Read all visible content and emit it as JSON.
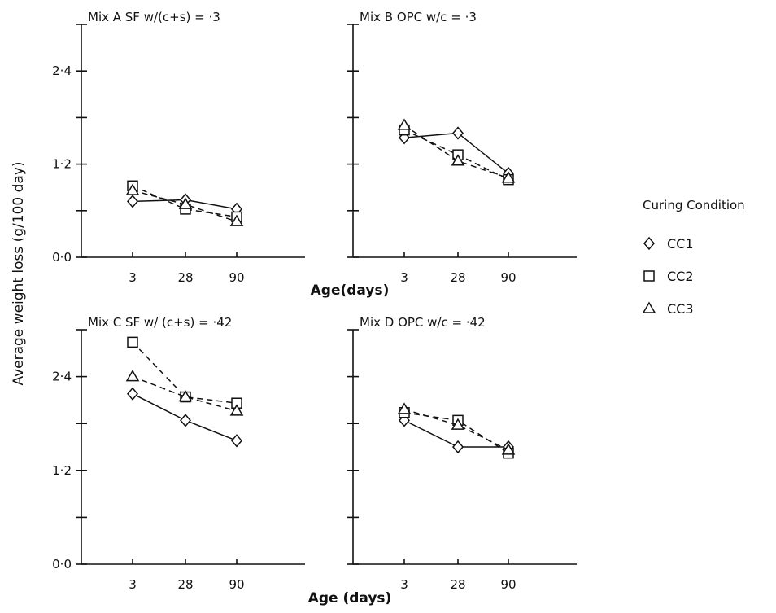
{
  "chart_data": {
    "type": "line",
    "ylabel": "Average weight loss (g/100 day)",
    "legend": {
      "title": "Curing Condition",
      "placement": "right",
      "entries": [
        {
          "name": "CC1",
          "marker": "diamond"
        },
        {
          "name": "CC2",
          "marker": "square"
        },
        {
          "name": "CC3",
          "marker": "triangle"
        }
      ]
    },
    "panels": [
      {
        "title": "Mix A  SF  w/(c+s) = ·3",
        "xlabel": "Age(days)",
        "categories": [
          "3",
          "28",
          "90"
        ],
        "yticks": [
          "0·0",
          "1·2",
          "2·4"
        ],
        "ylim": [
          0,
          3.0
        ],
        "series": [
          {
            "name": "CC1",
            "values": [
              0.72,
              0.74,
              0.62
            ]
          },
          {
            "name": "CC2",
            "values": [
              0.92,
              0.62,
              0.52
            ]
          },
          {
            "name": "CC3",
            "values": [
              0.86,
              0.68,
              0.46
            ]
          }
        ]
      },
      {
        "title": "Mix B  OPC  w/c = ·3",
        "xlabel": "",
        "categories": [
          "3",
          "28",
          "90"
        ],
        "yticks": [
          "",
          "",
          ""
        ],
        "ylim": [
          0,
          3.0
        ],
        "series": [
          {
            "name": "CC1",
            "values": [
              1.54,
              1.6,
              1.08
            ]
          },
          {
            "name": "CC2",
            "values": [
              1.64,
              1.32,
              1.0
            ]
          },
          {
            "name": "CC3",
            "values": [
              1.7,
              1.24,
              1.02
            ]
          }
        ]
      },
      {
        "title": "Mix C  SF  w/ (c+s) = ·42",
        "xlabel": "Age (days)",
        "categories": [
          "3",
          "28",
          "90"
        ],
        "yticks": [
          "0·0",
          "1·2",
          "2·4"
        ],
        "ylim": [
          0,
          3.0
        ],
        "series": [
          {
            "name": "CC1",
            "values": [
              2.18,
              1.84,
              1.58
            ]
          },
          {
            "name": "CC2",
            "values": [
              2.84,
              2.14,
              2.06
            ]
          },
          {
            "name": "CC3",
            "values": [
              2.4,
              2.14,
              1.96
            ]
          }
        ]
      },
      {
        "title": "Mix D  OPC  w/c = ·42",
        "xlabel": "",
        "categories": [
          "3",
          "28",
          "90"
        ],
        "yticks": [
          "",
          "",
          ""
        ],
        "ylim": [
          0,
          3.0
        ],
        "series": [
          {
            "name": "CC1",
            "values": [
              1.84,
              1.5,
              1.5
            ]
          },
          {
            "name": "CC2",
            "values": [
              1.94,
              1.84,
              1.42
            ]
          },
          {
            "name": "CC3",
            "values": [
              1.98,
              1.78,
              1.46
            ]
          }
        ]
      }
    ]
  }
}
